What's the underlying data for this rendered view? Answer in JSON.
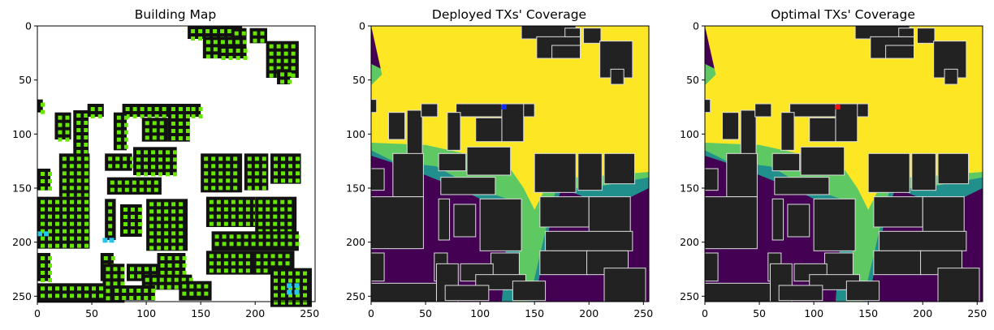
{
  "colors": {
    "building_black": "#111111",
    "grid_green": "#66e600",
    "grid_cyan": "#22c7ee",
    "coverage_purple": "#440154",
    "coverage_teal": "#21908d",
    "coverage_green": "#5ec962",
    "coverage_yellow": "#fde725",
    "building_gray": "#222222",
    "tx_deployed": "#1030ff",
    "tx_optimal": "#ff1010"
  },
  "chart_data": [
    {
      "type": "heatmap",
      "title": "Building Map",
      "xlim": [
        0,
        255
      ],
      "ylim": [
        255,
        0
      ],
      "xticks": [
        0,
        50,
        100,
        150,
        200,
        250
      ],
      "yticks": [
        0,
        50,
        100,
        150,
        200,
        250
      ],
      "xtick_labels": [
        "0",
        "50",
        "100",
        "150",
        "200",
        "250"
      ],
      "ytick_labels": [
        "0",
        "50",
        "100",
        "150",
        "200",
        "250"
      ]
    },
    {
      "type": "heatmap",
      "title": "Deployed TXs' Coverage",
      "xlim": [
        0,
        255
      ],
      "ylim": [
        255,
        0
      ],
      "xticks": [
        0,
        50,
        100,
        150,
        200,
        250
      ],
      "yticks": [
        0,
        50,
        100,
        150,
        200,
        250
      ],
      "xtick_labels": [
        "0",
        "50",
        "100",
        "150",
        "200",
        "250"
      ],
      "ytick_labels": [
        "0",
        "50",
        "100",
        "150",
        "200",
        "250"
      ],
      "transmitter": {
        "x": 122,
        "y": 75
      }
    },
    {
      "type": "heatmap",
      "title": "Optimal TXs' Coverage",
      "xlim": [
        0,
        255
      ],
      "ylim": [
        255,
        0
      ],
      "xticks": [
        0,
        50,
        100,
        150,
        200,
        250
      ],
      "yticks": [
        0,
        50,
        100,
        150,
        200,
        250
      ],
      "xtick_labels": [
        "0",
        "50",
        "100",
        "150",
        "200",
        "250"
      ],
      "ytick_labels": [
        "0",
        "50",
        "100",
        "150",
        "200",
        "250"
      ],
      "transmitter": {
        "x": 122,
        "y": 75
      }
    }
  ]
}
